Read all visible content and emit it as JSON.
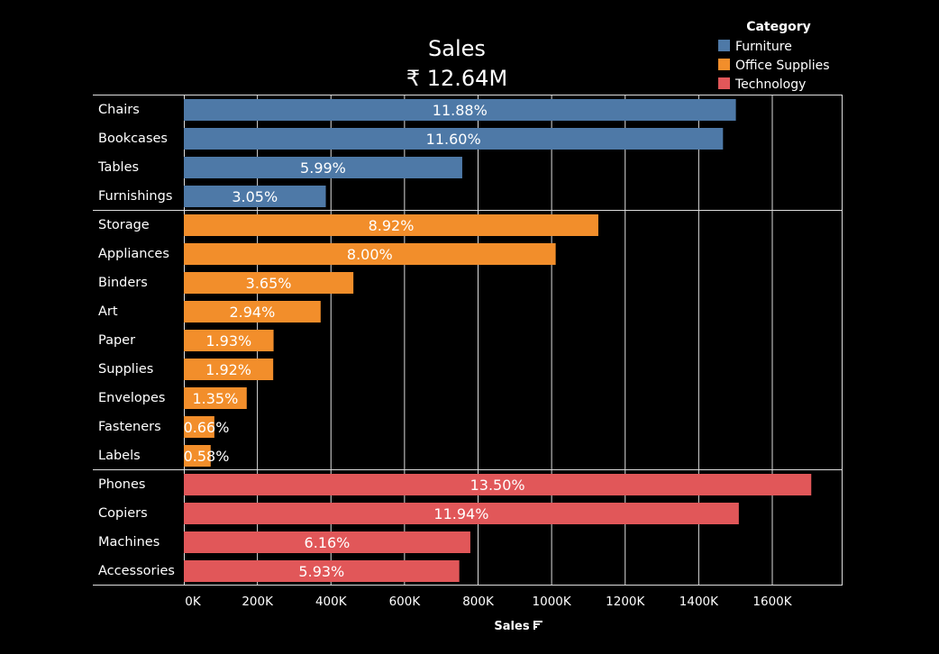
{
  "chart_data": {
    "type": "bar",
    "orientation": "horizontal",
    "title": "Sales",
    "subtitle": "₹ 12.64M",
    "xlabel": "Sales",
    "ylabel": "",
    "xlim": [
      0,
      1700000
    ],
    "x_ticks": [
      0,
      200000,
      400000,
      600000,
      800000,
      1000000,
      1200000,
      1400000,
      1600000
    ],
    "x_tick_labels": [
      "0K",
      "200K",
      "400K",
      "600K",
      "800K",
      "1000K",
      "1200K",
      "1400K",
      "1600K"
    ],
    "grid": true,
    "legend": {
      "title": "Category",
      "placement": "top-right"
    },
    "groups": [
      {
        "name": "Furniture",
        "color": "#4e79a7",
        "items": [
          {
            "label": "Chairs",
            "value": 1501000,
            "pct": "11.88%"
          },
          {
            "label": "Bookcases",
            "value": 1466000,
            "pct": "11.60%"
          },
          {
            "label": "Tables",
            "value": 757000,
            "pct": "5.99%"
          },
          {
            "label": "Furnishings",
            "value": 386000,
            "pct": "3.05%"
          }
        ]
      },
      {
        "name": "Office Supplies",
        "color": "#f28e2b",
        "items": [
          {
            "label": "Storage",
            "value": 1127000,
            "pct": "8.92%"
          },
          {
            "label": "Appliances",
            "value": 1011000,
            "pct": "8.00%"
          },
          {
            "label": "Binders",
            "value": 461000,
            "pct": "3.65%"
          },
          {
            "label": "Art",
            "value": 372000,
            "pct": "2.94%"
          },
          {
            "label": "Paper",
            "value": 244000,
            "pct": "1.93%"
          },
          {
            "label": "Supplies",
            "value": 243000,
            "pct": "1.92%"
          },
          {
            "label": "Envelopes",
            "value": 171000,
            "pct": "1.35%"
          },
          {
            "label": "Fasteners",
            "value": 83000,
            "pct": "0.66%"
          },
          {
            "label": "Labels",
            "value": 73000,
            "pct": "0.58%"
          }
        ]
      },
      {
        "name": "Technology",
        "color": "#e15759",
        "items": [
          {
            "label": "Phones",
            "value": 1706000,
            "pct": "13.50%"
          },
          {
            "label": "Copiers",
            "value": 1509000,
            "pct": "11.94%"
          },
          {
            "label": "Machines",
            "value": 779000,
            "pct": "6.16%"
          },
          {
            "label": "Accessories",
            "value": 749000,
            "pct": "5.93%"
          }
        ]
      }
    ]
  },
  "sort_icon": "sort-descending-icon"
}
